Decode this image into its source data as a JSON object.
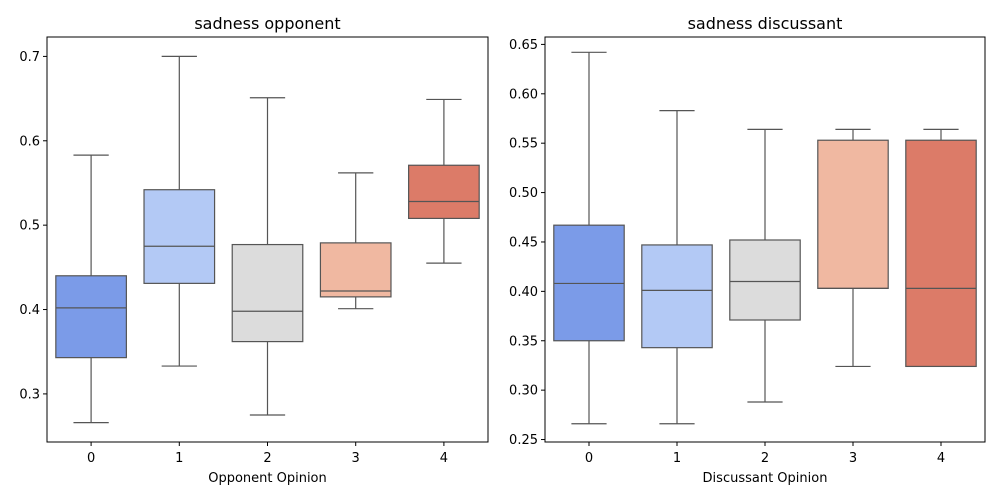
{
  "chart_data": [
    {
      "type": "boxplot",
      "title": "sadness opponent",
      "xlabel": "Opponent Opinion",
      "ylabel": "",
      "categories": [
        "0",
        "1",
        "2",
        "3",
        "4"
      ],
      "ylim": [
        0.243,
        0.723
      ],
      "yticks": [
        0.3,
        0.4,
        0.5,
        0.6,
        0.7
      ],
      "ytick_labels": [
        "0.3",
        "0.4",
        "0.5",
        "0.6",
        "0.7"
      ],
      "grid": false,
      "boxes": [
        {
          "category": "0",
          "whisker_low": 0.266,
          "q1": 0.343,
          "median": 0.402,
          "q3": 0.44,
          "whisker_high": 0.583,
          "color": "#7b9be8"
        },
        {
          "category": "1",
          "whisker_low": 0.333,
          "q1": 0.431,
          "median": 0.475,
          "q3": 0.542,
          "whisker_high": 0.7,
          "color": "#b3c9f5"
        },
        {
          "category": "2",
          "whisker_low": 0.275,
          "q1": 0.362,
          "median": 0.398,
          "q3": 0.477,
          "whisker_high": 0.651,
          "color": "#dcdcdc"
        },
        {
          "category": "3",
          "whisker_low": 0.401,
          "q1": 0.415,
          "median": 0.422,
          "q3": 0.479,
          "whisker_high": 0.562,
          "color": "#f0b8a1"
        },
        {
          "category": "4",
          "whisker_low": 0.455,
          "q1": 0.508,
          "median": 0.528,
          "q3": 0.571,
          "whisker_high": 0.649,
          "color": "#dc7b68"
        }
      ]
    },
    {
      "type": "boxplot",
      "title": "sadness discussant",
      "xlabel": "Discussant Opinion",
      "ylabel": "",
      "categories": [
        "0",
        "1",
        "2",
        "3",
        "4"
      ],
      "ylim": [
        0.2475,
        0.6575
      ],
      "yticks": [
        0.25,
        0.3,
        0.35,
        0.4,
        0.45,
        0.5,
        0.55,
        0.6,
        0.65
      ],
      "ytick_labels": [
        "0.25",
        "0.30",
        "0.35",
        "0.40",
        "0.45",
        "0.50",
        "0.55",
        "0.60",
        "0.65"
      ],
      "grid": false,
      "boxes": [
        {
          "category": "0",
          "whisker_low": 0.266,
          "q1": 0.35,
          "median": 0.408,
          "q3": 0.467,
          "whisker_high": 0.642,
          "color": "#7b9be8"
        },
        {
          "category": "1",
          "whisker_low": 0.266,
          "q1": 0.343,
          "median": 0.401,
          "q3": 0.447,
          "whisker_high": 0.583,
          "color": "#b3c9f5"
        },
        {
          "category": "2",
          "whisker_low": 0.288,
          "q1": 0.371,
          "median": 0.41,
          "q3": 0.452,
          "whisker_high": 0.564,
          "color": "#dcdcdc"
        },
        {
          "category": "3",
          "whisker_low": 0.324,
          "q1": 0.403,
          "median": 0.403,
          "q3": 0.553,
          "whisker_high": 0.564,
          "color": "#f0b8a1"
        },
        {
          "category": "4",
          "whisker_low": 0.324,
          "q1": 0.324,
          "median": 0.403,
          "q3": 0.553,
          "whisker_high": 0.564,
          "color": "#dc7b68"
        }
      ]
    }
  ]
}
